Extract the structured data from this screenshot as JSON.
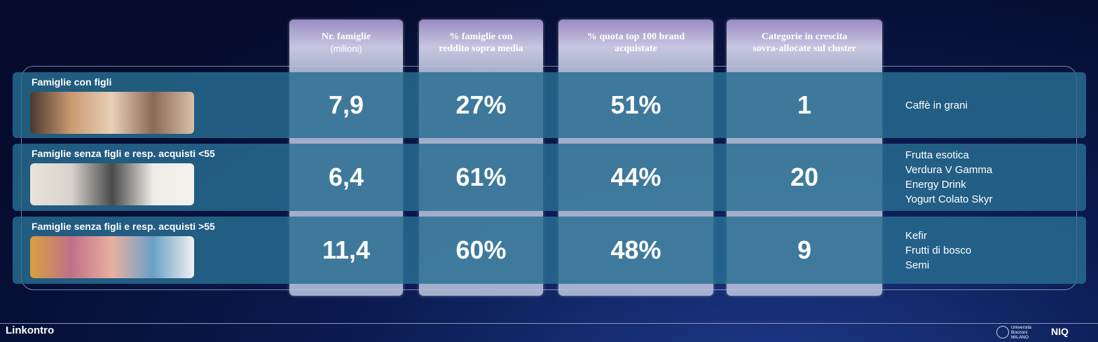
{
  "columns": [
    {
      "title": [
        "Nr. famiglie"
      ],
      "subtitle": "(milioni)"
    },
    {
      "title": [
        "% famiglie con",
        "reddito sopra media"
      ]
    },
    {
      "title": [
        "% quota top 100 brand",
        "acquistate"
      ]
    },
    {
      "title": [
        "Categorie in crescita",
        "sovra-allocate sul cluster"
      ]
    }
  ],
  "rows": [
    {
      "label": "Famiglie con figli",
      "values": [
        "7,9",
        "27%",
        "51%",
        "1"
      ],
      "categories": [
        "Caffè in grani"
      ]
    },
    {
      "label": "Famiglie senza figli e resp. acquisti <55",
      "values": [
        "6,4",
        "61%",
        "44%",
        "20"
      ],
      "categories": [
        "Frutta esotica",
        "Verdura V Gamma",
        "Energy Drink",
        "Yogurt Colato Skyr"
      ]
    },
    {
      "label": "Famiglie senza figli e resp. acquisti >55",
      "values": [
        "11,4",
        "60%",
        "48%",
        "9"
      ],
      "categories": [
        "Kefir",
        "Frutti di bosco",
        "Semi"
      ]
    }
  ],
  "footer": {
    "brand": "Linkontro",
    "university": [
      "Università",
      "Bocconi",
      "MILANO"
    ],
    "partner": "NIQ"
  }
}
